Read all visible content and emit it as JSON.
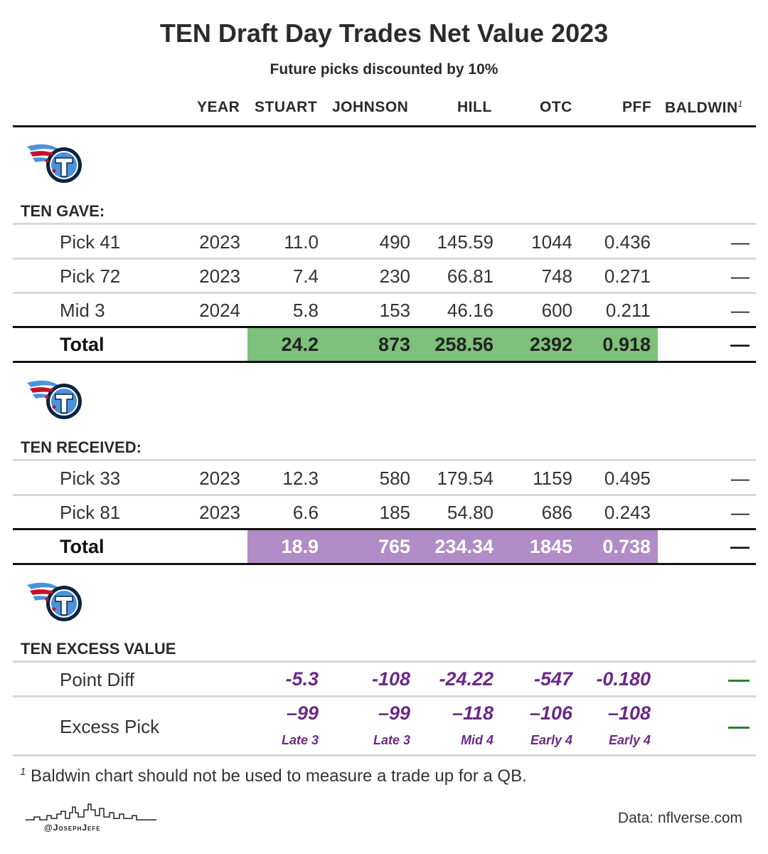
{
  "title": "TEN Draft Day Trades Net Value 2023",
  "subtitle": "Future picks discounted by 10%",
  "columns": [
    "YEAR",
    "STUART",
    "JOHNSON",
    "HILL",
    "OTC",
    "PFF",
    "BALDWIN"
  ],
  "baldwin_marker": "1",
  "gave": {
    "label": "TEN GAVE:",
    "rows": [
      {
        "name": "Pick 41",
        "year": "2023",
        "stuart": "11.0",
        "johnson": "490",
        "hill": "145.59",
        "otc": "1044",
        "pff": "0.436",
        "baldwin": "—"
      },
      {
        "name": "Pick 72",
        "year": "2023",
        "stuart": "7.4",
        "johnson": "230",
        "hill": "66.81",
        "otc": "748",
        "pff": "0.271",
        "baldwin": "—"
      },
      {
        "name": "Mid 3",
        "year": "2024",
        "stuart": "5.8",
        "johnson": "153",
        "hill": "46.16",
        "otc": "600",
        "pff": "0.211",
        "baldwin": "—"
      }
    ],
    "total": {
      "name": "Total",
      "stuart": "24.2",
      "johnson": "873",
      "hill": "258.56",
      "otc": "2392",
      "pff": "0.918",
      "baldwin": "—"
    }
  },
  "received": {
    "label": "TEN RECEIVED:",
    "rows": [
      {
        "name": "Pick 33",
        "year": "2023",
        "stuart": "12.3",
        "johnson": "580",
        "hill": "179.54",
        "otc": "1159",
        "pff": "0.495",
        "baldwin": "—"
      },
      {
        "name": "Pick 81",
        "year": "2023",
        "stuart": "6.6",
        "johnson": "185",
        "hill": "54.80",
        "otc": "686",
        "pff": "0.243",
        "baldwin": "—"
      }
    ],
    "total": {
      "name": "Total",
      "stuart": "18.9",
      "johnson": "765",
      "hill": "234.34",
      "otc": "1845",
      "pff": "0.738",
      "baldwin": "—"
    }
  },
  "excess": {
    "label": "TEN EXCESS VALUE",
    "point_diff": {
      "name": "Point Diff",
      "stuart": "-5.3",
      "johnson": "-108",
      "hill": "-24.22",
      "otc": "-547",
      "pff": "-0.180"
    },
    "excess_pick": {
      "name": "Excess Pick",
      "stuart": "–99",
      "johnson": "–99",
      "hill": "–118",
      "otc": "–106",
      "pff": "–108",
      "stuart_pick": "Late 3",
      "johnson_pick": "Late 3",
      "hill_pick": "Mid 4",
      "otc_pick": "Early 4",
      "pff_pick": "Early 4"
    }
  },
  "footnote_marker": "1",
  "footnote": "Baldwin chart should not be used to measure a trade up for a QB.",
  "source": "Data: nflverse.com",
  "handle": "@JosephJefe",
  "colors": {
    "gave_highlight": "#7dc17b",
    "received_highlight": "#b18cc6",
    "excess_text": "#6b2a86",
    "baldwin_dash": "#2e7d32"
  },
  "icons": [
    "titans-logo",
    "skyline-icon"
  ]
}
